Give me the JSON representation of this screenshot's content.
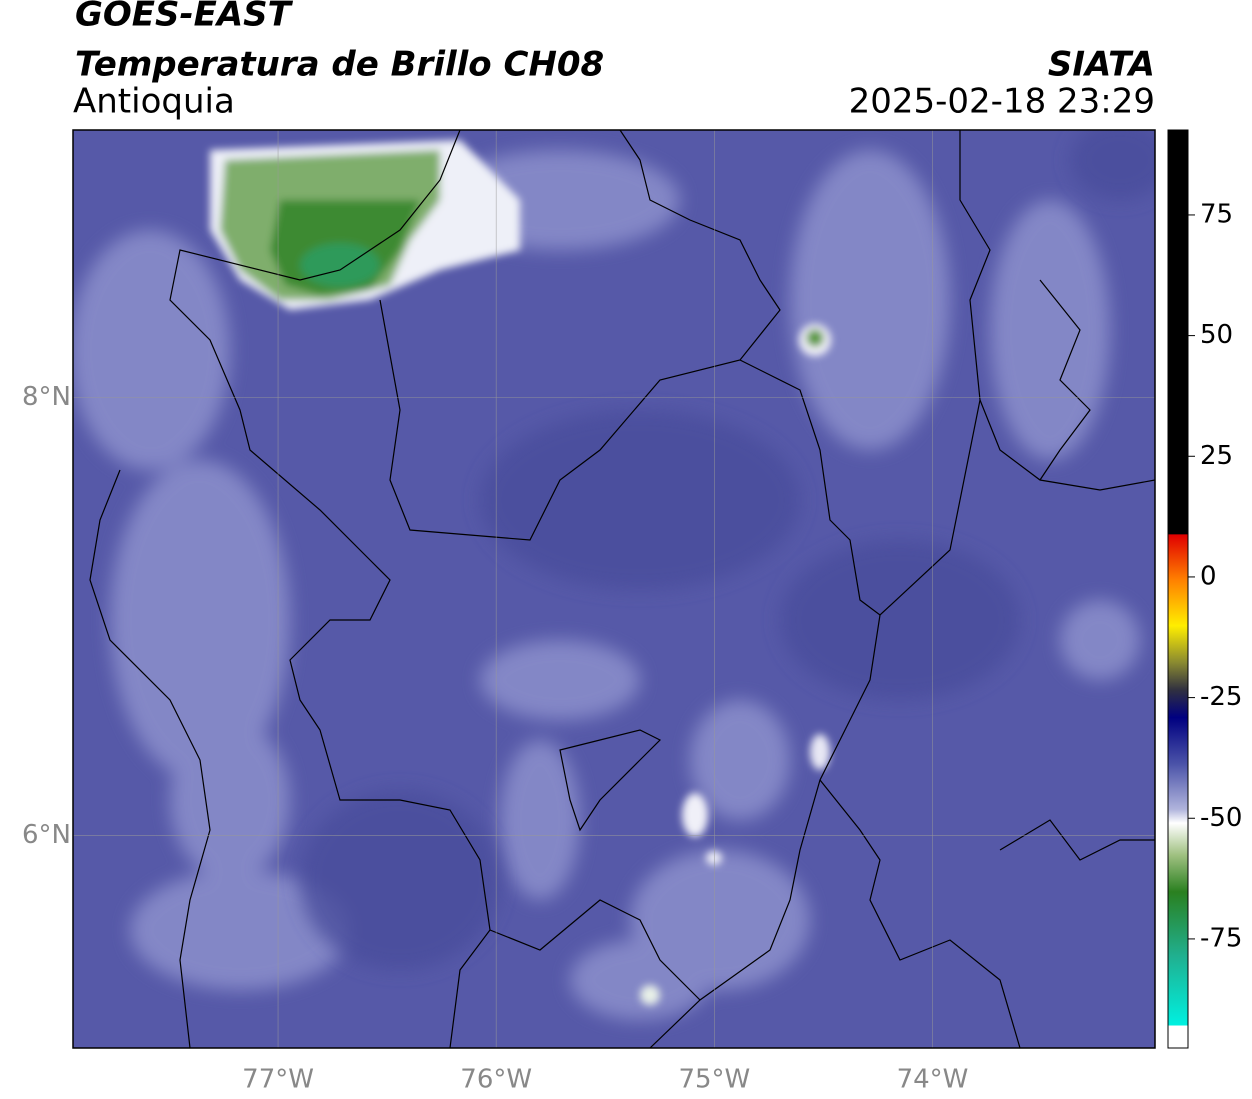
{
  "header": {
    "title": "GOES-EAST",
    "product": "Temperatura de Brillo CH08",
    "region": "Antioquia",
    "source": "SIATA",
    "datetime": "2025-02-18 23:29"
  },
  "map": {
    "lon": {
      "lim": [
        -77.94,
        -72.98
      ],
      "ticks": [
        {
          "value": -77,
          "label": "77°W"
        },
        {
          "value": -76,
          "label": "76°W"
        },
        {
          "value": -75,
          "label": "75°W"
        },
        {
          "value": -74,
          "label": "74°W"
        }
      ]
    },
    "lat": {
      "lim": [
        5.03,
        9.22
      ],
      "ticks": [
        {
          "value": 8,
          "label": "8°N"
        },
        {
          "value": 6,
          "label": "6°N"
        }
      ]
    }
  },
  "colorbar": {
    "lim": [
      -97.6,
      92.6
    ],
    "ticks": [
      75,
      50,
      25,
      0,
      -25,
      -50,
      -75
    ]
  }
}
